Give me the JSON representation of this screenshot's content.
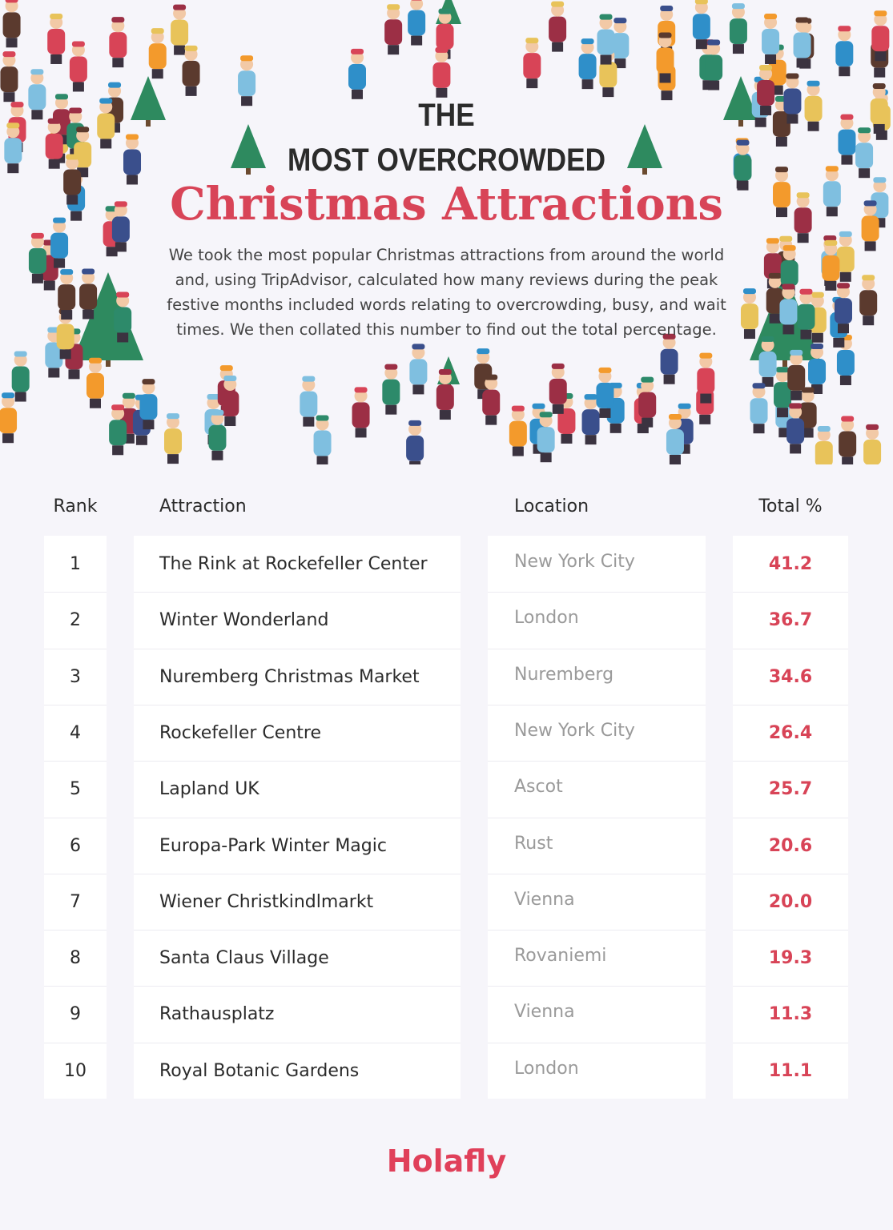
{
  "header": {
    "title_line1": "THE",
    "title_line2": "MOST OVERCROWDED",
    "title_line3": "Christmas Attractions",
    "description": [
      "We took the most popular Christmas attractions from around the world",
      "and, using TripAdvisor, calculated how many reviews during the peak",
      "festive months included words relating to overcrowding, busy, and wait",
      "times. We then collated this number to find out the total percentage."
    ]
  },
  "table": {
    "columns": [
      "Rank",
      "Attraction",
      "Location",
      "Total %"
    ],
    "rows": [
      [
        "1",
        "The Rink at Rockefeller Center",
        "New York City",
        "41.2"
      ],
      [
        "2",
        "Winter Wonderland",
        "London",
        "36.7"
      ],
      [
        "3",
        "Nuremberg Christmas Market",
        "Nuremberg",
        "34.6"
      ],
      [
        "4",
        "Rockefeller Centre",
        "New York City",
        "26.4"
      ],
      [
        "5",
        "Lapland UK",
        "Ascot",
        "25.7"
      ],
      [
        "6",
        "Europa-Park Winter Magic",
        "Rust",
        "20.6"
      ],
      [
        "7",
        "Wiener Christkindlmarkt",
        "Vienna",
        "20.0"
      ],
      [
        "8",
        "Santa Claus Village",
        "Rovaniemi",
        "19.3"
      ],
      [
        "9",
        "Rathausplatz",
        "Vienna",
        "11.3"
      ],
      [
        "10",
        "Royal Botanic Gardens",
        "London",
        "11.1"
      ]
    ]
  },
  "footer": {
    "brand": "Holafly"
  }
}
